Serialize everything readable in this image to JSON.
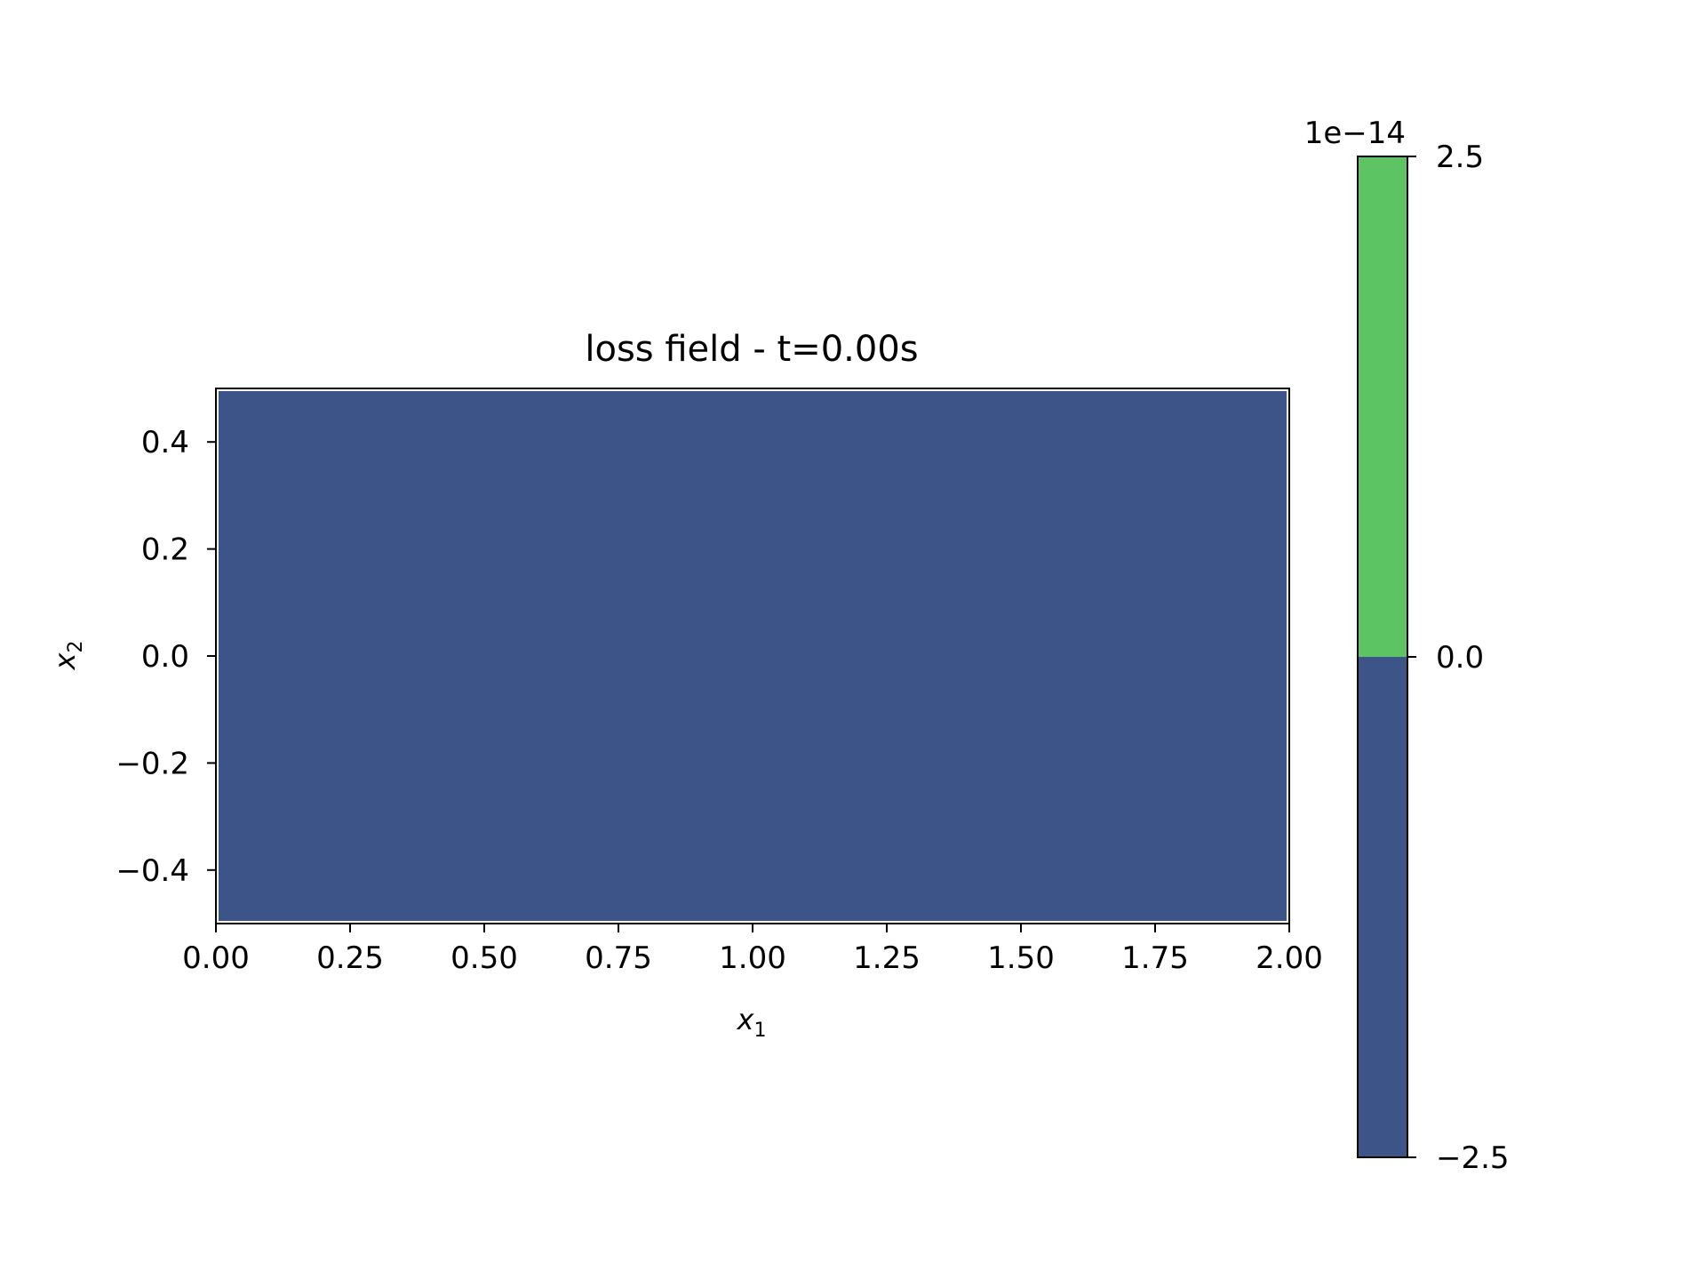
{
  "chart_data": {
    "type": "heatmap",
    "title": "loss field - t=0.00s",
    "xlabel": "x",
    "xlabel_subscript": "1",
    "ylabel": "x",
    "ylabel_subscript": "2",
    "xlim": [
      0.0,
      2.0
    ],
    "ylim": [
      -0.5,
      0.5
    ],
    "xticks": [
      0.0,
      0.25,
      0.5,
      0.75,
      1.0,
      1.25,
      1.5,
      1.75,
      2.0
    ],
    "xtick_labels": [
      "0.00",
      "0.25",
      "0.50",
      "0.75",
      "1.00",
      "1.25",
      "1.50",
      "1.75",
      "2.00"
    ],
    "yticks": [
      -0.4,
      -0.2,
      0.0,
      0.2,
      0.4
    ],
    "ytick_labels": [
      "−0.4",
      "−0.2",
      "0.0",
      "0.2",
      "0.4"
    ],
    "field": {
      "region": {
        "x": [
          0.0,
          2.0
        ],
        "y": [
          -0.5,
          0.5
        ]
      },
      "level_index": 0
    },
    "colorbar": {
      "scale_label": "1e−14",
      "range": [
        -2.5,
        2.5
      ],
      "ticks": [
        -2.5,
        0.0,
        2.5
      ],
      "tick_labels": [
        "−2.5",
        "0.0",
        "2.5"
      ],
      "levels": [
        {
          "from": -2.5,
          "to": 0.0,
          "color": "#3c5488"
        },
        {
          "from": 0.0,
          "to": 2.5,
          "color": "#5cc462"
        }
      ]
    },
    "grid": false
  }
}
